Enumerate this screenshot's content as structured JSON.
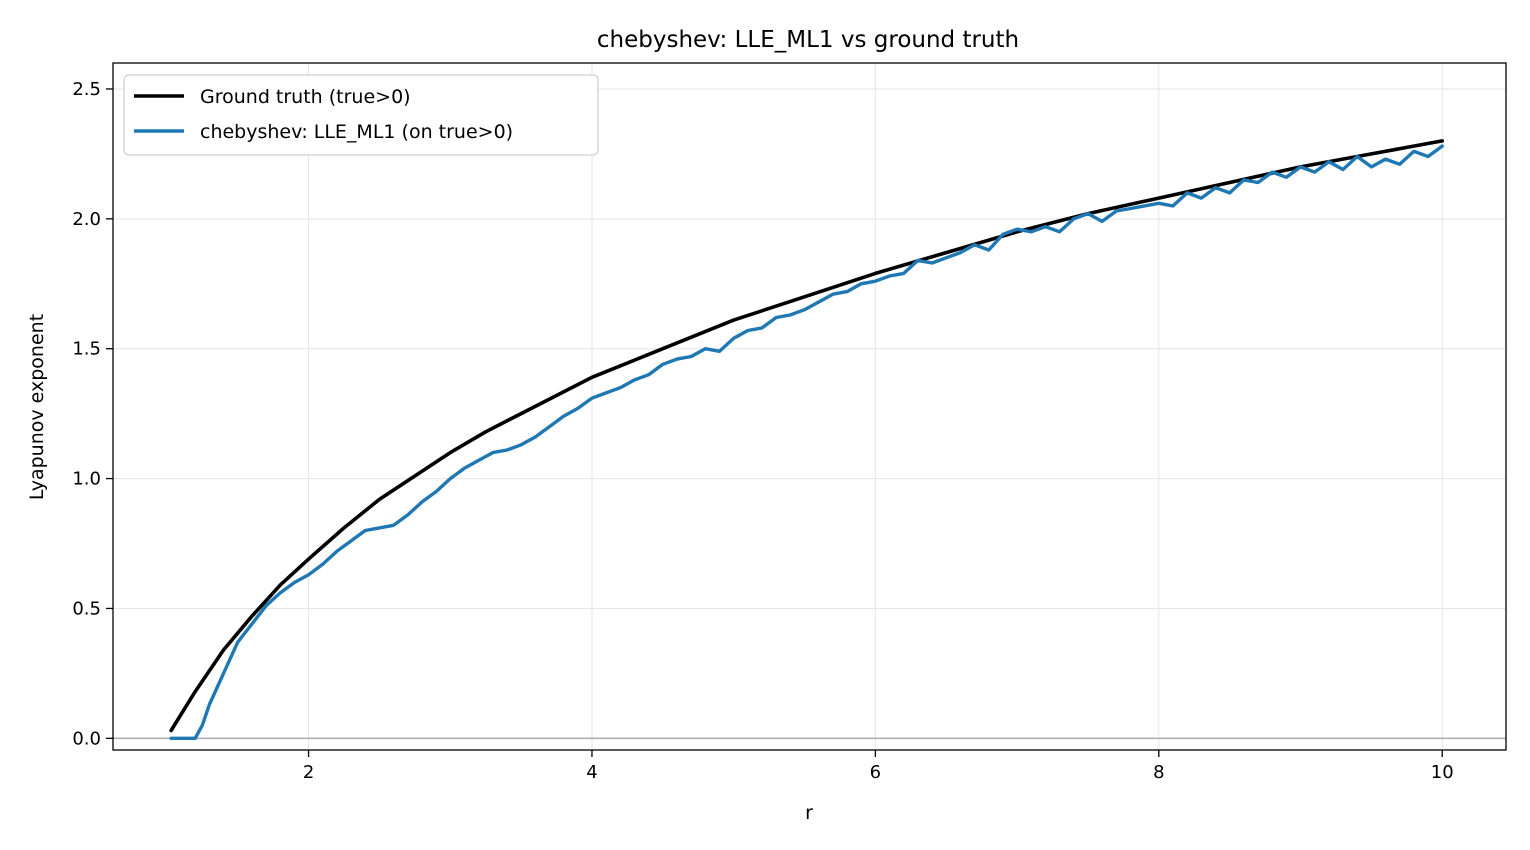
{
  "colors": {
    "ground_truth": "#000000",
    "ml": "#1f77b4",
    "grid": "#e5e5e5",
    "zero_line": "#b0b0b0"
  },
  "chart_data": {
    "type": "line",
    "title": "chebyshev: LLE_ML1 vs ground truth",
    "xlabel": "r",
    "ylabel": "Lyapunov exponent",
    "xlim": [
      0.62,
      10.45
    ],
    "ylim": [
      -0.045,
      2.6
    ],
    "xticks": [
      2,
      4,
      6,
      8,
      10
    ],
    "xtick_labels": [
      "2",
      "4",
      "6",
      "8",
      "10"
    ],
    "yticks": [
      0.0,
      0.5,
      1.0,
      1.5,
      2.0,
      2.5
    ],
    "ytick_labels": [
      "0.0",
      "0.5",
      "1.0",
      "1.5",
      "2.0",
      "2.5"
    ],
    "grid": true,
    "zero_line": true,
    "legend": {
      "position": "top-left"
    },
    "series": [
      {
        "name": "Ground truth (true>0)",
        "key": "gt",
        "x": [
          1.03,
          1.2,
          1.4,
          1.6,
          1.8,
          2.0,
          2.25,
          2.5,
          2.75,
          3.0,
          3.25,
          3.5,
          3.75,
          4.0,
          4.5,
          5.0,
          5.5,
          6.0,
          6.5,
          7.0,
          7.5,
          8.0,
          8.5,
          9.0,
          9.5,
          10.0
        ],
        "y": [
          0.03,
          0.18,
          0.34,
          0.47,
          0.59,
          0.69,
          0.81,
          0.92,
          1.01,
          1.1,
          1.18,
          1.25,
          1.32,
          1.39,
          1.5,
          1.61,
          1.7,
          1.79,
          1.87,
          1.95,
          2.02,
          2.08,
          2.14,
          2.2,
          2.25,
          2.3
        ]
      },
      {
        "name": "chebyshev: LLE_ML1 (on true>0)",
        "key": "ml",
        "x": [
          1.03,
          1.1,
          1.2,
          1.25,
          1.3,
          1.4,
          1.5,
          1.6,
          1.7,
          1.8,
          1.9,
          2.0,
          2.1,
          2.2,
          2.3,
          2.4,
          2.5,
          2.6,
          2.7,
          2.8,
          2.9,
          3.0,
          3.1,
          3.2,
          3.3,
          3.4,
          3.5,
          3.6,
          3.7,
          3.8,
          3.9,
          4.0,
          4.1,
          4.2,
          4.3,
          4.4,
          4.5,
          4.6,
          4.7,
          4.8,
          4.9,
          5.0,
          5.1,
          5.2,
          5.3,
          5.4,
          5.5,
          5.6,
          5.7,
          5.8,
          5.9,
          6.0,
          6.1,
          6.2,
          6.3,
          6.4,
          6.5,
          6.6,
          6.7,
          6.8,
          6.9,
          7.0,
          7.1,
          7.2,
          7.3,
          7.4,
          7.5,
          7.6,
          7.7,
          7.8,
          7.9,
          8.0,
          8.1,
          8.2,
          8.3,
          8.4,
          8.5,
          8.6,
          8.7,
          8.8,
          8.9,
          9.0,
          9.1,
          9.2,
          9.3,
          9.4,
          9.5,
          9.6,
          9.7,
          9.8,
          9.9,
          10.0
        ],
        "y": [
          0.0,
          0.0,
          0.0,
          0.05,
          0.13,
          0.25,
          0.37,
          0.44,
          0.51,
          0.56,
          0.6,
          0.63,
          0.67,
          0.72,
          0.76,
          0.8,
          0.81,
          0.82,
          0.86,
          0.91,
          0.95,
          1.0,
          1.04,
          1.07,
          1.1,
          1.11,
          1.13,
          1.16,
          1.2,
          1.24,
          1.27,
          1.31,
          1.33,
          1.35,
          1.38,
          1.4,
          1.44,
          1.46,
          1.47,
          1.5,
          1.49,
          1.54,
          1.57,
          1.58,
          1.62,
          1.63,
          1.65,
          1.68,
          1.71,
          1.72,
          1.75,
          1.76,
          1.78,
          1.79,
          1.84,
          1.83,
          1.85,
          1.87,
          1.9,
          1.88,
          1.94,
          1.96,
          1.95,
          1.97,
          1.95,
          2.0,
          2.02,
          1.99,
          2.03,
          2.04,
          2.05,
          2.06,
          2.05,
          2.1,
          2.08,
          2.12,
          2.1,
          2.15,
          2.14,
          2.18,
          2.16,
          2.2,
          2.18,
          2.22,
          2.19,
          2.24,
          2.2,
          2.23,
          2.21,
          2.26,
          2.24,
          2.28
        ]
      }
    ]
  }
}
